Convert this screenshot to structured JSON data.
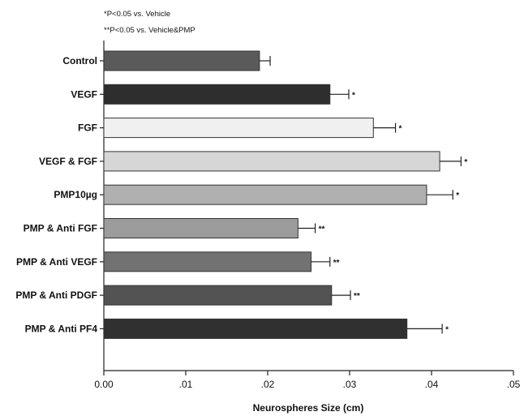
{
  "chart_data": {
    "type": "bar",
    "orientation": "horizontal",
    "notes": [
      "*P<0.05 vs. Vehicle",
      "**P<0.05 vs. Vehicle&PMP"
    ],
    "xlabel": "Neurospheres Size (cm)",
    "ylabel": "",
    "title": "",
    "xlim": [
      0,
      0.05
    ],
    "x_ticks": [
      0,
      0.01,
      0.02,
      0.03,
      0.04,
      0.05
    ],
    "x_tick_labels": [
      "0.00",
      ".01",
      ".02",
      ".03",
      ".04",
      ".05"
    ],
    "grid": false,
    "categories": [
      "Control",
      "VEGF",
      "FGF",
      "VEGF & FGF",
      "PMP10µg",
      "PMP & Anti FGF",
      "PMP & Anti VEGF",
      "PMP & Anti PDGF",
      "PMP & Anti PF4"
    ],
    "values": [
      0.019,
      0.0276,
      0.0329,
      0.041,
      0.0394,
      0.0237,
      0.0253,
      0.0278,
      0.037
    ],
    "errors": [
      0.0013,
      0.0023,
      0.0027,
      0.0026,
      0.0032,
      0.0021,
      0.0023,
      0.0023,
      0.0043
    ],
    "significance": [
      "",
      "*",
      "*",
      "*",
      "*",
      "**",
      "**",
      "**",
      "*"
    ],
    "colors": [
      "#5a5a5a",
      "#2e2e2e",
      "#f0f0f0",
      "#d6d6d6",
      "#b0b0b0",
      "#9c9c9c",
      "#727272",
      "#535353",
      "#303030"
    ]
  }
}
